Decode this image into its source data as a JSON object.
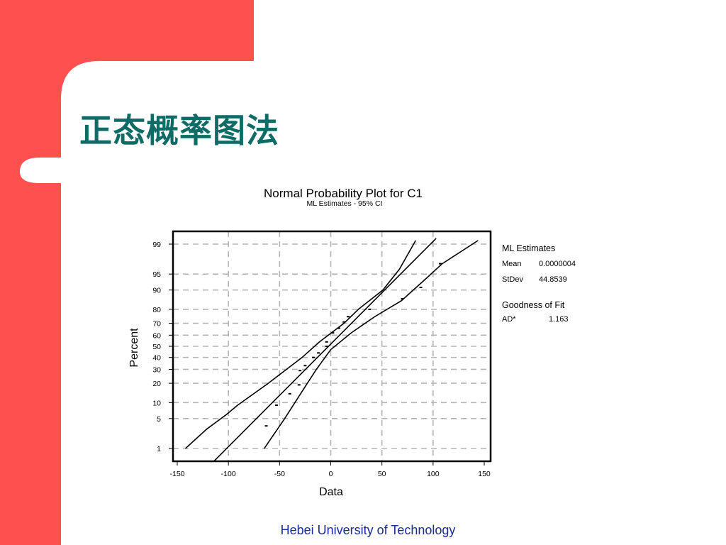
{
  "slide": {
    "title": "正态概率图法",
    "footer": "Hebei University of Technology",
    "colors": {
      "frame_red": "#ff5050",
      "title_teal": "#0e6b65",
      "footer_blue": "#1a2a9a"
    }
  },
  "chart_data": {
    "type": "scatter",
    "title": "Normal Probability Plot for C1",
    "subtitle": "ML Estimates - 95% CI",
    "xlabel": "Data",
    "ylabel": "Percent",
    "xlim": [
      -150,
      150
    ],
    "x_ticks": [
      -150,
      -100,
      -50,
      0,
      50,
      100,
      150
    ],
    "y_scale": "normal probability",
    "y_ticks": [
      1,
      5,
      10,
      20,
      30,
      40,
      50,
      60,
      70,
      80,
      90,
      95,
      99
    ],
    "grid": true,
    "points": [
      {
        "x": -63,
        "y": 3.5
      },
      {
        "x": -53,
        "y": 9
      },
      {
        "x": -40,
        "y": 14
      },
      {
        "x": -31,
        "y": 19
      },
      {
        "x": -30,
        "y": 29
      },
      {
        "x": -25,
        "y": 33
      },
      {
        "x": -17,
        "y": 40
      },
      {
        "x": -12,
        "y": 44
      },
      {
        "x": -4,
        "y": 50
      },
      {
        "x": -4,
        "y": 54
      },
      {
        "x": 2,
        "y": 62
      },
      {
        "x": 8,
        "y": 66
      },
      {
        "x": 13,
        "y": 71
      },
      {
        "x": 17,
        "y": 75
      },
      {
        "x": 38,
        "y": 80
      },
      {
        "x": 70,
        "y": 86
      },
      {
        "x": 88,
        "y": 91
      },
      {
        "x": 107,
        "y": 97
      }
    ],
    "fit_line": [
      {
        "x": -143,
        "y": 0.05
      },
      {
        "x": 103,
        "y": 99.3
      }
    ],
    "ci_upper": [
      {
        "x": -142,
        "y": 1
      },
      {
        "x": -121,
        "y": 3
      },
      {
        "x": -102,
        "y": 6
      },
      {
        "x": -98,
        "y": 7
      },
      {
        "x": -91,
        "y": 9
      },
      {
        "x": -61,
        "y": 20
      },
      {
        "x": -28,
        "y": 40
      },
      {
        "x": -11,
        "y": 54
      },
      {
        "x": 13,
        "y": 70
      },
      {
        "x": 27,
        "y": 80
      },
      {
        "x": 51,
        "y": 90
      },
      {
        "x": 67,
        "y": 96
      },
      {
        "x": 83,
        "y": 99.2
      }
    ],
    "ci_lower": [
      {
        "x": -65,
        "y": 1
      },
      {
        "x": -45,
        "y": 5
      },
      {
        "x": -26,
        "y": 17
      },
      {
        "x": -14,
        "y": 30
      },
      {
        "x": 0,
        "y": 47
      },
      {
        "x": 20,
        "y": 62
      },
      {
        "x": 43,
        "y": 75
      },
      {
        "x": 69,
        "y": 85
      },
      {
        "x": 90,
        "y": 93
      },
      {
        "x": 109,
        "y": 97
      },
      {
        "x": 144,
        "y": 99.2
      }
    ],
    "stats": {
      "estimates_title": "ML Estimates",
      "mean_label": "Mean",
      "mean_value": "0.0000004",
      "stdev_label": "StDev",
      "stdev_value": "44.8539",
      "fit_title": "Goodness of Fit",
      "ad_label": "AD*",
      "ad_value": "1.163"
    }
  }
}
